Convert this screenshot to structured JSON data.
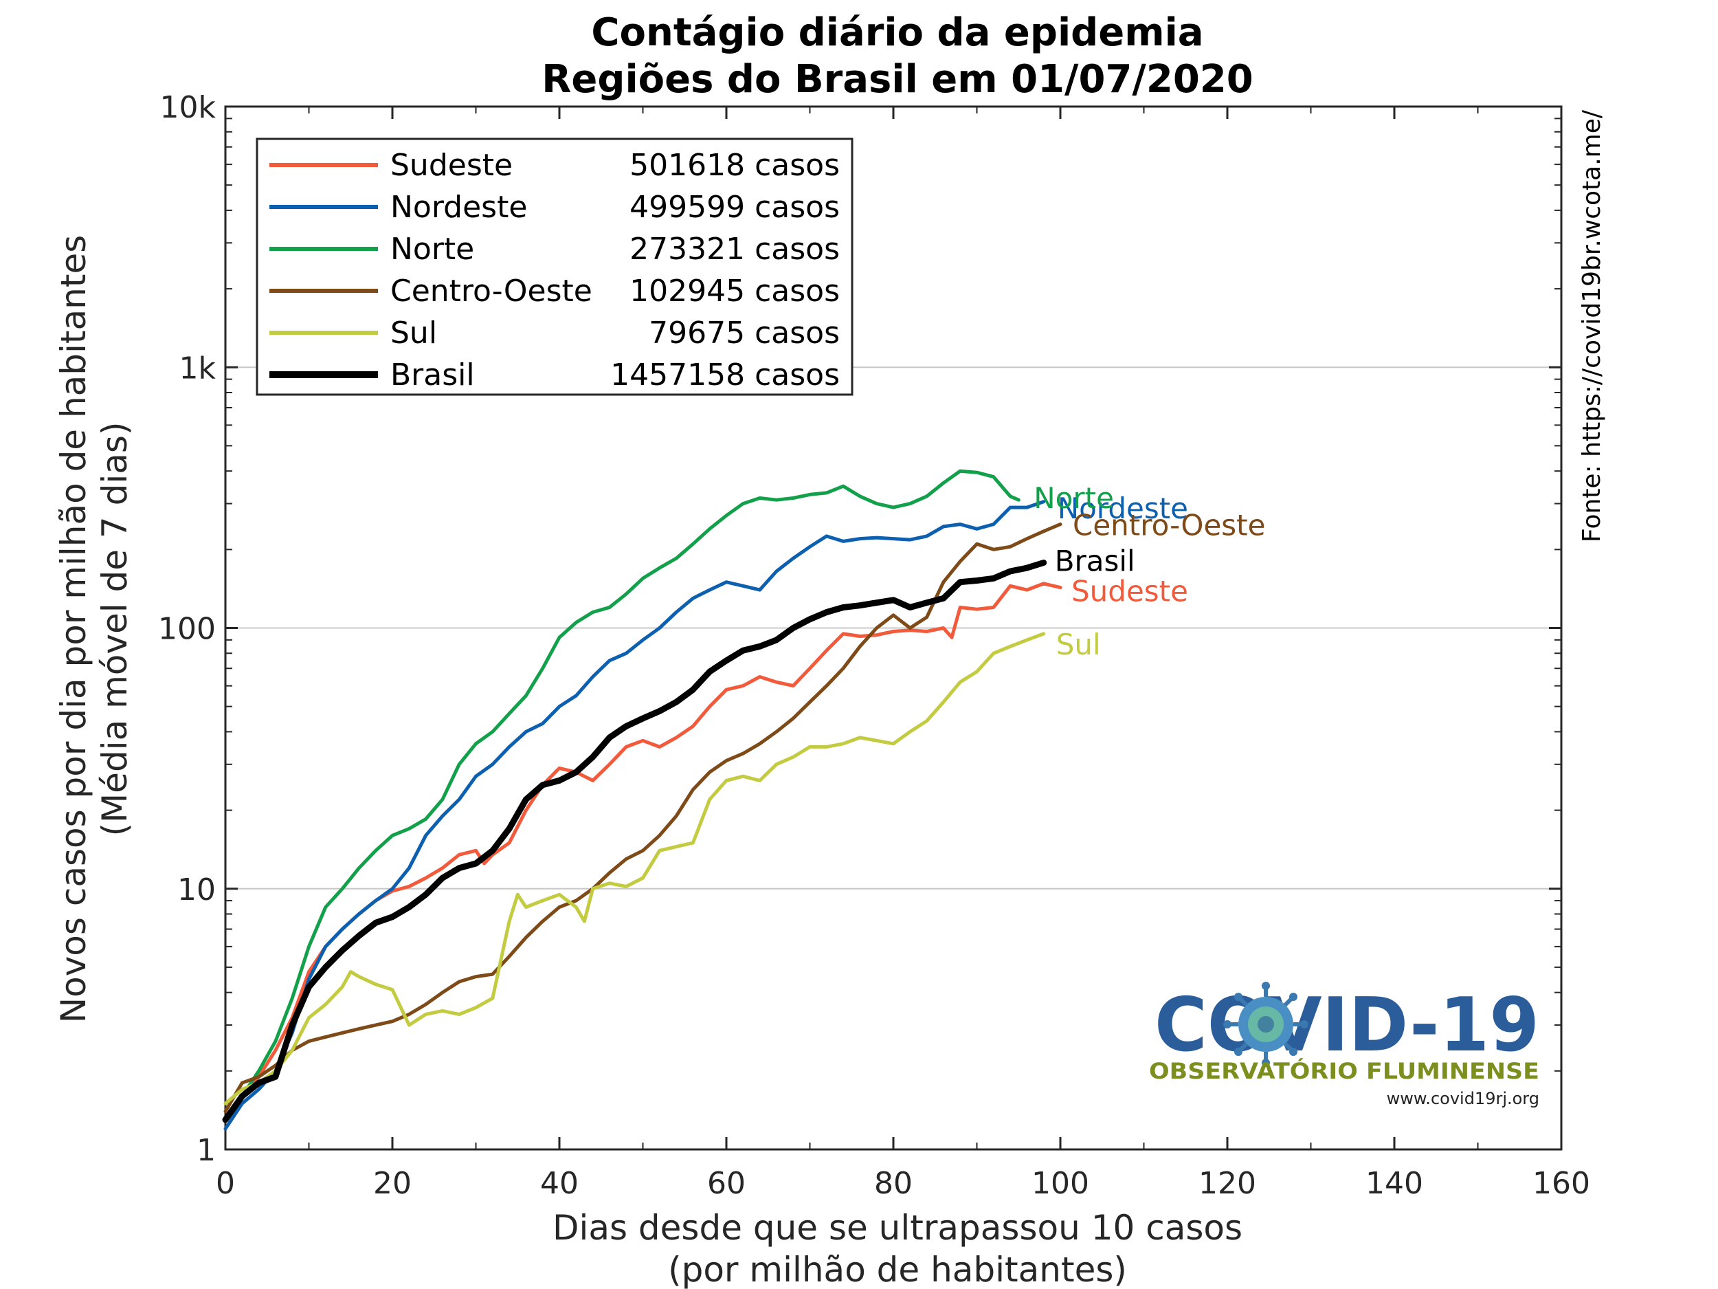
{
  "chart_data": {
    "type": "line",
    "title": "Contágio diário da epidemia",
    "subtitle": "Regiões do Brasil em 01/07/2020",
    "xlabel": "Dias desde que se ultrapassou 10 casos",
    "xlabel2": "(por milhão de habitantes)",
    "ylabel": "Novos casos por dia por milhão de habitantes",
    "ylabel2": "(Média móvel de 7 dias)",
    "source": "Fonte: https://covid19br.wcota.me/",
    "xlim": [
      0,
      160
    ],
    "ylim": [
      1,
      10000
    ],
    "yscale": "log",
    "grid": "horizontal",
    "legend_position": "top-left",
    "xticks": [
      0,
      20,
      40,
      60,
      80,
      100,
      120,
      140,
      160
    ],
    "xtick_labels": [
      "0",
      "20",
      "40",
      "60",
      "80",
      "100",
      "120",
      "140",
      "160"
    ],
    "yticks": [
      1,
      10,
      100,
      1000,
      10000
    ],
    "ytick_labels": [
      "1",
      "10",
      "100",
      "1k",
      "10k"
    ],
    "series": [
      {
        "name": "Sudeste",
        "total": "501618 casos",
        "color": "#f25a3c",
        "width": 5,
        "end_label": "Sudeste",
        "points": [
          [
            0,
            1.3
          ],
          [
            2,
            1.6
          ],
          [
            4,
            1.9
          ],
          [
            6,
            2.4
          ],
          [
            8,
            3.2
          ],
          [
            10,
            4.8
          ],
          [
            12,
            6.0
          ],
          [
            14,
            7.0
          ],
          [
            16,
            8.0
          ],
          [
            18,
            9.0
          ],
          [
            20,
            9.8
          ],
          [
            22,
            10.2
          ],
          [
            24,
            11.0
          ],
          [
            26,
            12.0
          ],
          [
            28,
            13.5
          ],
          [
            30,
            14.0
          ],
          [
            31,
            12.5
          ],
          [
            32,
            13.5
          ],
          [
            34,
            15.0
          ],
          [
            36,
            20.0
          ],
          [
            38,
            25.0
          ],
          [
            40,
            29.0
          ],
          [
            42,
            28.0
          ],
          [
            44,
            26.0
          ],
          [
            46,
            30.0
          ],
          [
            48,
            35.0
          ],
          [
            50,
            37.0
          ],
          [
            52,
            35.0
          ],
          [
            54,
            38.0
          ],
          [
            56,
            42.0
          ],
          [
            58,
            50.0
          ],
          [
            60,
            58.0
          ],
          [
            62,
            60.0
          ],
          [
            64,
            65.0
          ],
          [
            66,
            62.0
          ],
          [
            68,
            60.0
          ],
          [
            70,
            70.0
          ],
          [
            72,
            82.0
          ],
          [
            74,
            95.0
          ],
          [
            76,
            93.0
          ],
          [
            78,
            94.0
          ],
          [
            80,
            97.0
          ],
          [
            82,
            98.0
          ],
          [
            84,
            97.0
          ],
          [
            86,
            100.0
          ],
          [
            87,
            92.0
          ],
          [
            88,
            120.0
          ],
          [
            90,
            118.0
          ],
          [
            92,
            120.0
          ],
          [
            94,
            145.0
          ],
          [
            96,
            140.0
          ],
          [
            98,
            148.0
          ],
          [
            100,
            143.0
          ]
        ]
      },
      {
        "name": "Nordeste",
        "total": "499599 casos",
        "color": "#0d5faf",
        "width": 5,
        "end_label": "Nordeste",
        "points": [
          [
            0,
            1.2
          ],
          [
            2,
            1.5
          ],
          [
            4,
            1.7
          ],
          [
            6,
            2.0
          ],
          [
            8,
            2.8
          ],
          [
            10,
            4.5
          ],
          [
            12,
            6.0
          ],
          [
            14,
            7.0
          ],
          [
            16,
            8.0
          ],
          [
            18,
            9.0
          ],
          [
            20,
            10.0
          ],
          [
            22,
            12.0
          ],
          [
            24,
            16.0
          ],
          [
            26,
            19.0
          ],
          [
            28,
            22.0
          ],
          [
            30,
            27.0
          ],
          [
            32,
            30.0
          ],
          [
            34,
            35.0
          ],
          [
            36,
            40.0
          ],
          [
            38,
            43.0
          ],
          [
            40,
            50.0
          ],
          [
            42,
            55.0
          ],
          [
            44,
            65.0
          ],
          [
            46,
            75.0
          ],
          [
            48,
            80.0
          ],
          [
            50,
            90.0
          ],
          [
            52,
            100.0
          ],
          [
            54,
            115.0
          ],
          [
            56,
            130.0
          ],
          [
            58,
            140.0
          ],
          [
            60,
            150.0
          ],
          [
            62,
            145.0
          ],
          [
            64,
            140.0
          ],
          [
            66,
            165.0
          ],
          [
            68,
            185.0
          ],
          [
            70,
            205.0
          ],
          [
            72,
            225.0
          ],
          [
            74,
            215.0
          ],
          [
            76,
            220.0
          ],
          [
            78,
            222.0
          ],
          [
            80,
            220.0
          ],
          [
            82,
            218.0
          ],
          [
            84,
            225.0
          ],
          [
            86,
            245.0
          ],
          [
            88,
            250.0
          ],
          [
            90,
            240.0
          ],
          [
            92,
            250.0
          ],
          [
            94,
            290.0
          ],
          [
            96,
            290.0
          ],
          [
            98,
            305.0
          ]
        ]
      },
      {
        "name": "Norte",
        "total": "273321 casos",
        "color": "#13a04b",
        "width": 5,
        "end_label": "Norte",
        "points": [
          [
            0,
            1.3
          ],
          [
            2,
            1.6
          ],
          [
            4,
            2.0
          ],
          [
            6,
            2.6
          ],
          [
            8,
            3.8
          ],
          [
            10,
            6.0
          ],
          [
            12,
            8.5
          ],
          [
            14,
            10.0
          ],
          [
            16,
            12.0
          ],
          [
            18,
            14.0
          ],
          [
            20,
            16.0
          ],
          [
            22,
            17.0
          ],
          [
            24,
            18.5
          ],
          [
            26,
            22.0
          ],
          [
            28,
            30.0
          ],
          [
            30,
            36.0
          ],
          [
            32,
            40.0
          ],
          [
            34,
            47.0
          ],
          [
            36,
            55.0
          ],
          [
            38,
            70.0
          ],
          [
            40,
            92.0
          ],
          [
            42,
            105.0
          ],
          [
            44,
            115.0
          ],
          [
            46,
            120.0
          ],
          [
            48,
            135.0
          ],
          [
            50,
            155.0
          ],
          [
            52,
            170.0
          ],
          [
            54,
            185.0
          ],
          [
            56,
            210.0
          ],
          [
            58,
            240.0
          ],
          [
            60,
            270.0
          ],
          [
            62,
            300.0
          ],
          [
            64,
            315.0
          ],
          [
            66,
            310.0
          ],
          [
            68,
            315.0
          ],
          [
            70,
            325.0
          ],
          [
            72,
            330.0
          ],
          [
            74,
            350.0
          ],
          [
            76,
            320.0
          ],
          [
            78,
            300.0
          ],
          [
            80,
            290.0
          ],
          [
            82,
            300.0
          ],
          [
            84,
            320.0
          ],
          [
            86,
            360.0
          ],
          [
            88,
            400.0
          ],
          [
            90,
            395.0
          ],
          [
            92,
            380.0
          ],
          [
            94,
            320.0
          ],
          [
            95,
            310.0
          ]
        ]
      },
      {
        "name": "Centro-Oeste",
        "total": "102945 casos",
        "color": "#7e4a17",
        "width": 5,
        "end_label": "Centro-Oeste",
        "points": [
          [
            0,
            1.4
          ],
          [
            2,
            1.8
          ],
          [
            4,
            1.9
          ],
          [
            6,
            2.1
          ],
          [
            8,
            2.4
          ],
          [
            10,
            2.6
          ],
          [
            12,
            2.7
          ],
          [
            14,
            2.8
          ],
          [
            16,
            2.9
          ],
          [
            18,
            3.0
          ],
          [
            20,
            3.1
          ],
          [
            22,
            3.3
          ],
          [
            24,
            3.6
          ],
          [
            26,
            4.0
          ],
          [
            28,
            4.4
          ],
          [
            30,
            4.6
          ],
          [
            32,
            4.7
          ],
          [
            34,
            5.5
          ],
          [
            36,
            6.5
          ],
          [
            38,
            7.5
          ],
          [
            40,
            8.5
          ],
          [
            42,
            9.0
          ],
          [
            44,
            10.0
          ],
          [
            46,
            11.5
          ],
          [
            48,
            13.0
          ],
          [
            50,
            14.0
          ],
          [
            52,
            16.0
          ],
          [
            54,
            19.0
          ],
          [
            56,
            24.0
          ],
          [
            58,
            28.0
          ],
          [
            60,
            31.0
          ],
          [
            62,
            33.0
          ],
          [
            64,
            36.0
          ],
          [
            66,
            40.0
          ],
          [
            68,
            45.0
          ],
          [
            70,
            52.0
          ],
          [
            72,
            60.0
          ],
          [
            74,
            70.0
          ],
          [
            76,
            85.0
          ],
          [
            78,
            100.0
          ],
          [
            80,
            112.0
          ],
          [
            82,
            100.0
          ],
          [
            84,
            110.0
          ],
          [
            86,
            150.0
          ],
          [
            88,
            180.0
          ],
          [
            90,
            210.0
          ],
          [
            92,
            200.0
          ],
          [
            94,
            205.0
          ],
          [
            96,
            220.0
          ],
          [
            98,
            235.0
          ],
          [
            100,
            250.0
          ]
        ]
      },
      {
        "name": "Sul",
        "total": "79675 casos",
        "color": "#c3cb40",
        "width": 5,
        "end_label": "Sul",
        "points": [
          [
            0,
            1.5
          ],
          [
            2,
            1.7
          ],
          [
            4,
            1.8
          ],
          [
            6,
            2.0
          ],
          [
            8,
            2.4
          ],
          [
            10,
            3.2
          ],
          [
            12,
            3.6
          ],
          [
            14,
            4.2
          ],
          [
            15,
            4.8
          ],
          [
            16,
            4.6
          ],
          [
            18,
            4.3
          ],
          [
            20,
            4.1
          ],
          [
            22,
            3.0
          ],
          [
            24,
            3.3
          ],
          [
            26,
            3.4
          ],
          [
            28,
            3.3
          ],
          [
            30,
            3.5
          ],
          [
            32,
            3.8
          ],
          [
            34,
            7.5
          ],
          [
            35,
            9.5
          ],
          [
            36,
            8.5
          ],
          [
            38,
            9.0
          ],
          [
            40,
            9.5
          ],
          [
            42,
            8.5
          ],
          [
            43,
            7.5
          ],
          [
            44,
            10.0
          ],
          [
            46,
            10.5
          ],
          [
            48,
            10.2
          ],
          [
            50,
            11.0
          ],
          [
            52,
            14.0
          ],
          [
            54,
            14.5
          ],
          [
            56,
            15.0
          ],
          [
            58,
            22.0
          ],
          [
            60,
            26.0
          ],
          [
            62,
            27.0
          ],
          [
            64,
            26.0
          ],
          [
            66,
            30.0
          ],
          [
            68,
            32.0
          ],
          [
            70,
            35.0
          ],
          [
            72,
            35.0
          ],
          [
            74,
            36.0
          ],
          [
            76,
            38.0
          ],
          [
            78,
            37.0
          ],
          [
            80,
            36.0
          ],
          [
            82,
            40.0
          ],
          [
            84,
            44.0
          ],
          [
            86,
            52.0
          ],
          [
            88,
            62.0
          ],
          [
            90,
            68.0
          ],
          [
            92,
            80.0
          ],
          [
            94,
            85.0
          ],
          [
            96,
            90.0
          ],
          [
            98,
            95.0
          ]
        ]
      },
      {
        "name": "Brasil",
        "total": "1457158 casos",
        "color": "#000000",
        "width": 9,
        "end_label": "Brasil",
        "points": [
          [
            0,
            1.3
          ],
          [
            2,
            1.6
          ],
          [
            4,
            1.8
          ],
          [
            6,
            1.9
          ],
          [
            8,
            3.0
          ],
          [
            10,
            4.2
          ],
          [
            12,
            5.0
          ],
          [
            14,
            5.8
          ],
          [
            16,
            6.6
          ],
          [
            18,
            7.4
          ],
          [
            20,
            7.8
          ],
          [
            22,
            8.5
          ],
          [
            24,
            9.5
          ],
          [
            26,
            11.0
          ],
          [
            28,
            12.0
          ],
          [
            30,
            12.5
          ],
          [
            32,
            14.0
          ],
          [
            34,
            17.0
          ],
          [
            36,
            22.0
          ],
          [
            38,
            25.0
          ],
          [
            40,
            26.0
          ],
          [
            42,
            28.0
          ],
          [
            44,
            32.0
          ],
          [
            46,
            38.0
          ],
          [
            48,
            42.0
          ],
          [
            50,
            45.0
          ],
          [
            52,
            48.0
          ],
          [
            54,
            52.0
          ],
          [
            56,
            58.0
          ],
          [
            58,
            68.0
          ],
          [
            60,
            75.0
          ],
          [
            62,
            82.0
          ],
          [
            64,
            85.0
          ],
          [
            66,
            90.0
          ],
          [
            68,
            100.0
          ],
          [
            70,
            108.0
          ],
          [
            72,
            115.0
          ],
          [
            74,
            120.0
          ],
          [
            76,
            122.0
          ],
          [
            78,
            125.0
          ],
          [
            80,
            128.0
          ],
          [
            82,
            120.0
          ],
          [
            84,
            125.0
          ],
          [
            86,
            130.0
          ],
          [
            88,
            150.0
          ],
          [
            90,
            152.0
          ],
          [
            92,
            155.0
          ],
          [
            94,
            165.0
          ],
          [
            96,
            170.0
          ],
          [
            98,
            178.0
          ]
        ]
      }
    ]
  },
  "logo": {
    "brand": "COVID-19",
    "subtitle": "OBSERVATÓRIO FLUMINENSE",
    "url": "www.covid19rj.org"
  }
}
